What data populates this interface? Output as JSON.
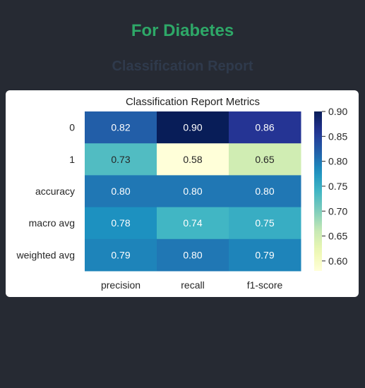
{
  "page": {
    "title": "For Diabetes",
    "title_color": "#2ea868",
    "section_heading": "Classification Report",
    "section_heading_color": "#2f3a4c",
    "background": "#262a33"
  },
  "chart_data": {
    "type": "heatmap",
    "title": "Classification Report Metrics",
    "rows": [
      "0",
      "1",
      "accuracy",
      "macro avg",
      "weighted avg"
    ],
    "columns": [
      "precision",
      "recall",
      "f1-score"
    ],
    "values": [
      [
        0.82,
        0.9,
        0.86
      ],
      [
        0.73,
        0.58,
        0.65
      ],
      [
        0.8,
        0.8,
        0.8
      ],
      [
        0.78,
        0.74,
        0.75
      ],
      [
        0.79,
        0.8,
        0.79
      ]
    ],
    "value_labels": [
      [
        "0.82",
        "0.90",
        "0.86"
      ],
      [
        "0.73",
        "0.58",
        "0.65"
      ],
      [
        "0.80",
        "0.80",
        "0.80"
      ],
      [
        "0.78",
        "0.74",
        "0.75"
      ],
      [
        "0.79",
        "0.80",
        "0.79"
      ]
    ],
    "colormap": "YlGnBu",
    "color_range": [
      0.58,
      0.9
    ],
    "colorbar_ticks": [
      "0.90",
      "0.85",
      "0.80",
      "0.75",
      "0.70",
      "0.65",
      "0.60"
    ],
    "colorbar_tick_values": [
      0.9,
      0.85,
      0.8,
      0.75,
      0.7,
      0.65,
      0.6
    ]
  }
}
